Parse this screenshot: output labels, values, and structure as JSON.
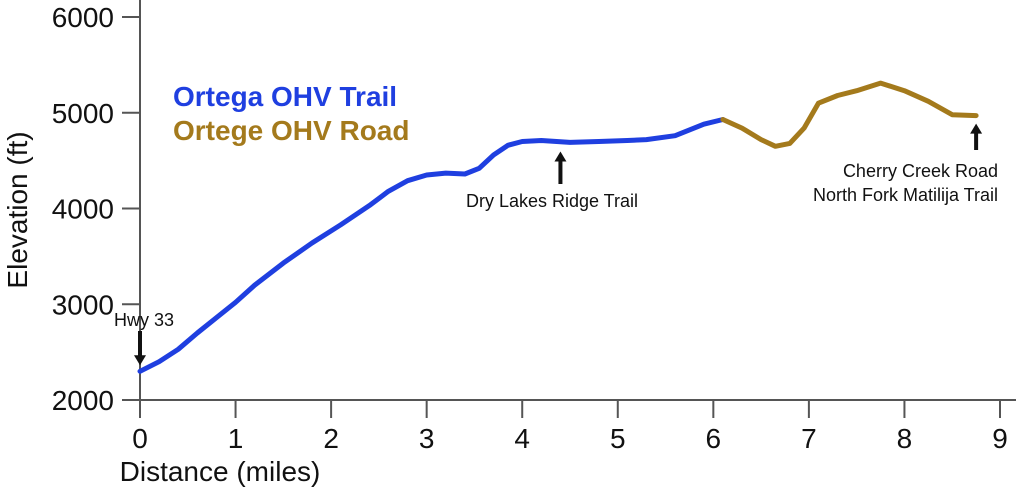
{
  "chart_data": {
    "type": "line",
    "title": "",
    "xlabel": "Distance (miles)",
    "ylabel": "Elevation (ft)",
    "xlim": [
      0,
      9
    ],
    "ylim": [
      2000,
      6000
    ],
    "x_ticks": [
      "0",
      "1",
      "2",
      "3",
      "4",
      "5",
      "6",
      "7",
      "8",
      "9"
    ],
    "y_ticks": [
      "2000",
      "3000",
      "4000",
      "5000",
      "6000"
    ],
    "grid": false,
    "legend": [
      "Ortega OHV Trail",
      "Ortege OHV Road"
    ],
    "series": [
      {
        "name": "Ortega OHV Trail",
        "color": "#1f3fe0",
        "x": [
          0,
          0.2,
          0.4,
          0.6,
          0.8,
          1.0,
          1.2,
          1.5,
          1.8,
          2.1,
          2.4,
          2.6,
          2.8,
          3.0,
          3.2,
          3.4,
          3.55,
          3.7,
          3.85,
          4.0,
          4.2,
          4.5,
          4.8,
          5.1,
          5.3,
          5.6,
          5.9,
          6.1
        ],
        "y": [
          2300,
          2400,
          2530,
          2700,
          2860,
          3020,
          3200,
          3430,
          3640,
          3830,
          4030,
          4180,
          4290,
          4350,
          4370,
          4360,
          4420,
          4560,
          4660,
          4700,
          4710,
          4690,
          4700,
          4710,
          4720,
          4760,
          4880,
          4930
        ]
      },
      {
        "name": "Ortege OHV Road",
        "color": "#a47a1c",
        "x": [
          6.1,
          6.3,
          6.5,
          6.65,
          6.8,
          6.95,
          7.1,
          7.3,
          7.5,
          7.75,
          8.0,
          8.25,
          8.5,
          8.75
        ],
        "y": [
          4930,
          4840,
          4720,
          4650,
          4680,
          4840,
          5100,
          5180,
          5230,
          5310,
          5230,
          5120,
          4980,
          4970
        ]
      }
    ],
    "annotations": [
      {
        "lines": [
          "Hwy 33"
        ],
        "x": 0,
        "y": 2300
      },
      {
        "lines": [
          "Dry Lakes Ridge Trail"
        ],
        "x": 4.4,
        "y": 4700
      },
      {
        "lines": [
          "Cherry Creek Road",
          "North Fork Matilija Trail"
        ],
        "x": 8.75,
        "y": 4970
      }
    ]
  }
}
